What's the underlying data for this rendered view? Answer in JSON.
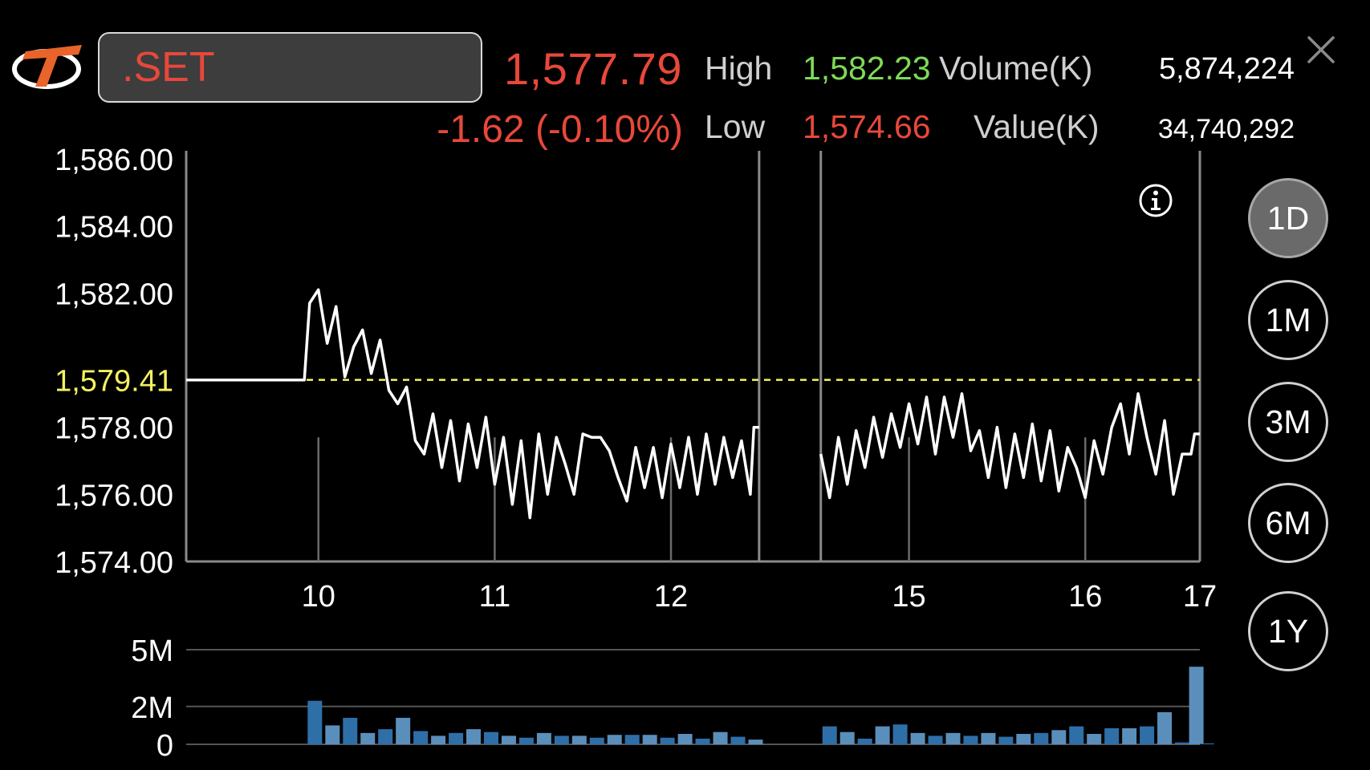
{
  "header": {
    "logo_icon": "brand-logo-icon",
    "symbol": ".SET",
    "last_price": "1,577.79",
    "change": "-1.62  (-0.10%)",
    "high_label": "High",
    "high_value": "1,582.23",
    "low_label": "Low",
    "low_value": "1,574.66",
    "volume_label": "Volume(K)",
    "volume_value": "5,874,224",
    "value_label": "Value(K)",
    "value_value": "34,740,292",
    "close_icon": "close-icon",
    "colors": {
      "up": "#7ed957",
      "down": "#e8483a",
      "reference": "#f5f062"
    }
  },
  "info_icon": "info-icon",
  "range_buttons": [
    {
      "label": "1D",
      "active": true
    },
    {
      "label": "1M",
      "active": false
    },
    {
      "label": "3M",
      "active": false
    },
    {
      "label": "6M",
      "active": false
    },
    {
      "label": "1Y",
      "active": false
    }
  ],
  "chart_data": [
    {
      "type": "line",
      "y_ticks": [
        "1,586.00",
        "1,584.00",
        "1,582.00",
        "1,578.00",
        "1,576.00",
        "1,574.00"
      ],
      "y_tick_values": [
        1586,
        1584,
        1582,
        1578,
        1576,
        1574
      ],
      "ylim": [
        1574,
        1586
      ],
      "reference_line": {
        "label": "1,579.41",
        "value": 1579.41,
        "style": "dashed",
        "color": "#f5f062"
      },
      "x_ticks": [
        "10",
        "11",
        "12",
        "15",
        "16",
        "17"
      ],
      "x_tick_values": [
        10,
        11,
        12,
        13.35,
        14.35,
        15.0
      ],
      "xlim": [
        9.25,
        15.0
      ],
      "session_breaks": [
        12.5,
        12.85
      ],
      "grid": "vertical at ticks",
      "series": [
        {
          "segments": [
            [
              [
                9.25,
                1579.41
              ],
              [
                9.92,
                1579.41
              ],
              [
                9.95,
                1581.7
              ],
              [
                10.0,
                1582.1
              ],
              [
                10.05,
                1580.5
              ],
              [
                10.1,
                1581.6
              ],
              [
                10.15,
                1579.5
              ],
              [
                10.2,
                1580.4
              ],
              [
                10.25,
                1580.9
              ],
              [
                10.3,
                1579.6
              ],
              [
                10.35,
                1580.6
              ],
              [
                10.4,
                1579.1
              ],
              [
                10.45,
                1578.7
              ],
              [
                10.5,
                1579.2
              ],
              [
                10.55,
                1577.6
              ],
              [
                10.6,
                1577.2
              ],
              [
                10.65,
                1578.4
              ],
              [
                10.7,
                1576.8
              ],
              [
                10.75,
                1578.2
              ],
              [
                10.8,
                1576.4
              ],
              [
                10.85,
                1578.1
              ],
              [
                10.9,
                1576.8
              ],
              [
                10.95,
                1578.3
              ],
              [
                11.0,
                1576.3
              ],
              [
                11.05,
                1577.7
              ],
              [
                11.1,
                1575.7
              ],
              [
                11.15,
                1577.6
              ],
              [
                11.2,
                1575.3
              ],
              [
                11.25,
                1577.8
              ],
              [
                11.3,
                1576.0
              ],
              [
                11.35,
                1577.7
              ],
              [
                11.4,
                1576.9
              ],
              [
                11.45,
                1576.0
              ],
              [
                11.5,
                1577.8
              ],
              [
                11.55,
                1577.7
              ],
              [
                11.6,
                1577.7
              ],
              [
                11.65,
                1577.3
              ],
              [
                11.7,
                1576.5
              ],
              [
                11.75,
                1575.8
              ],
              [
                11.8,
                1577.4
              ],
              [
                11.85,
                1576.2
              ],
              [
                11.9,
                1577.4
              ],
              [
                11.95,
                1575.9
              ],
              [
                12.0,
                1577.5
              ],
              [
                12.05,
                1576.2
              ],
              [
                12.1,
                1577.7
              ],
              [
                12.15,
                1576.0
              ],
              [
                12.2,
                1577.8
              ],
              [
                12.25,
                1576.3
              ],
              [
                12.3,
                1577.7
              ],
              [
                12.35,
                1576.5
              ],
              [
                12.4,
                1577.6
              ],
              [
                12.45,
                1576.0
              ],
              [
                12.47,
                1578.0
              ],
              [
                12.5,
                1578.0
              ]
            ],
            [
              [
                12.85,
                1577.2
              ],
              [
                12.9,
                1575.9
              ],
              [
                12.95,
                1577.7
              ],
              [
                13.0,
                1576.3
              ],
              [
                13.05,
                1577.9
              ],
              [
                13.1,
                1576.8
              ],
              [
                13.15,
                1578.3
              ],
              [
                13.2,
                1577.1
              ],
              [
                13.25,
                1578.4
              ],
              [
                13.3,
                1577.4
              ],
              [
                13.35,
                1578.7
              ],
              [
                13.4,
                1577.5
              ],
              [
                13.45,
                1578.9
              ],
              [
                13.5,
                1577.2
              ],
              [
                13.55,
                1578.9
              ],
              [
                13.6,
                1577.7
              ],
              [
                13.65,
                1579.0
              ],
              [
                13.7,
                1577.3
              ],
              [
                13.75,
                1577.9
              ],
              [
                13.8,
                1576.5
              ],
              [
                13.85,
                1578.0
              ],
              [
                13.9,
                1576.2
              ],
              [
                13.95,
                1577.8
              ],
              [
                14.0,
                1576.5
              ],
              [
                14.05,
                1578.1
              ],
              [
                14.1,
                1576.4
              ],
              [
                14.15,
                1577.9
              ],
              [
                14.2,
                1576.1
              ],
              [
                14.25,
                1577.4
              ],
              [
                14.3,
                1576.8
              ],
              [
                14.35,
                1575.9
              ],
              [
                14.4,
                1577.6
              ],
              [
                14.45,
                1576.6
              ],
              [
                14.5,
                1578.0
              ],
              [
                14.55,
                1578.7
              ],
              [
                14.6,
                1577.2
              ],
              [
                14.65,
                1579.0
              ],
              [
                14.7,
                1577.7
              ],
              [
                14.75,
                1576.6
              ],
              [
                14.8,
                1578.2
              ],
              [
                14.85,
                1576.0
              ],
              [
                14.9,
                1577.2
              ],
              [
                14.95,
                1577.2
              ],
              [
                14.97,
                1577.8
              ],
              [
                15.0,
                1577.8
              ]
            ]
          ]
        }
      ]
    },
    {
      "type": "bar",
      "y_ticks": [
        "5M",
        "2M",
        "0"
      ],
      "y_tick_values": [
        5,
        2,
        0
      ],
      "ylim": [
        0,
        5
      ],
      "values": [
        {
          "x": 9.98,
          "v": 2.3,
          "c": "#2f6fa8"
        },
        {
          "x": 10.08,
          "v": 1.0,
          "c": "#5b8fbb"
        },
        {
          "x": 10.18,
          "v": 1.4,
          "c": "#2f6fa8"
        },
        {
          "x": 10.28,
          "v": 0.6,
          "c": "#5b8fbb"
        },
        {
          "x": 10.38,
          "v": 0.8,
          "c": "#2f6fa8"
        },
        {
          "x": 10.48,
          "v": 1.4,
          "c": "#5b8fbb"
        },
        {
          "x": 10.58,
          "v": 0.7,
          "c": "#2f6fa8"
        },
        {
          "x": 10.68,
          "v": 0.45,
          "c": "#5b8fbb"
        },
        {
          "x": 10.78,
          "v": 0.6,
          "c": "#2f6fa8"
        },
        {
          "x": 10.88,
          "v": 0.8,
          "c": "#5b8fbb"
        },
        {
          "x": 10.98,
          "v": 0.65,
          "c": "#2f6fa8"
        },
        {
          "x": 11.08,
          "v": 0.45,
          "c": "#5b8fbb"
        },
        {
          "x": 11.18,
          "v": 0.35,
          "c": "#2f6fa8"
        },
        {
          "x": 11.28,
          "v": 0.6,
          "c": "#5b8fbb"
        },
        {
          "x": 11.38,
          "v": 0.45,
          "c": "#2f6fa8"
        },
        {
          "x": 11.48,
          "v": 0.45,
          "c": "#5b8fbb"
        },
        {
          "x": 11.58,
          "v": 0.35,
          "c": "#2f6fa8"
        },
        {
          "x": 11.68,
          "v": 0.5,
          "c": "#5b8fbb"
        },
        {
          "x": 11.78,
          "v": 0.5,
          "c": "#2f6fa8"
        },
        {
          "x": 11.88,
          "v": 0.5,
          "c": "#5b8fbb"
        },
        {
          "x": 11.98,
          "v": 0.35,
          "c": "#2f6fa8"
        },
        {
          "x": 12.08,
          "v": 0.55,
          "c": "#5b8fbb"
        },
        {
          "x": 12.18,
          "v": 0.3,
          "c": "#2f6fa8"
        },
        {
          "x": 12.28,
          "v": 0.65,
          "c": "#5b8fbb"
        },
        {
          "x": 12.38,
          "v": 0.4,
          "c": "#2f6fa8"
        },
        {
          "x": 12.48,
          "v": 0.25,
          "c": "#5b8fbb"
        },
        {
          "x": 12.9,
          "v": 0.95,
          "c": "#2f6fa8"
        },
        {
          "x": 13.0,
          "v": 0.65,
          "c": "#5b8fbb"
        },
        {
          "x": 13.1,
          "v": 0.3,
          "c": "#2f6fa8"
        },
        {
          "x": 13.2,
          "v": 0.95,
          "c": "#5b8fbb"
        },
        {
          "x": 13.3,
          "v": 1.05,
          "c": "#2f6fa8"
        },
        {
          "x": 13.4,
          "v": 0.6,
          "c": "#5b8fbb"
        },
        {
          "x": 13.5,
          "v": 0.45,
          "c": "#2f6fa8"
        },
        {
          "x": 13.6,
          "v": 0.6,
          "c": "#5b8fbb"
        },
        {
          "x": 13.7,
          "v": 0.45,
          "c": "#2f6fa8"
        },
        {
          "x": 13.8,
          "v": 0.6,
          "c": "#5b8fbb"
        },
        {
          "x": 13.9,
          "v": 0.4,
          "c": "#2f6fa8"
        },
        {
          "x": 14.0,
          "v": 0.55,
          "c": "#5b8fbb"
        },
        {
          "x": 14.1,
          "v": 0.6,
          "c": "#2f6fa8"
        },
        {
          "x": 14.2,
          "v": 0.75,
          "c": "#5b8fbb"
        },
        {
          "x": 14.3,
          "v": 0.95,
          "c": "#2f6fa8"
        },
        {
          "x": 14.4,
          "v": 0.55,
          "c": "#5b8fbb"
        },
        {
          "x": 14.5,
          "v": 0.85,
          "c": "#2f6fa8"
        },
        {
          "x": 14.6,
          "v": 0.85,
          "c": "#5b8fbb"
        },
        {
          "x": 14.7,
          "v": 0.95,
          "c": "#2f6fa8"
        },
        {
          "x": 14.8,
          "v": 1.7,
          "c": "#5b8fbb"
        },
        {
          "x": 14.9,
          "v": 0.1,
          "c": "#2f6fa8"
        },
        {
          "x": 14.98,
          "v": 4.1,
          "c": "#5b8fbb"
        },
        {
          "x": 15.04,
          "v": 0.05,
          "c": "#2f6fa8"
        }
      ]
    }
  ]
}
